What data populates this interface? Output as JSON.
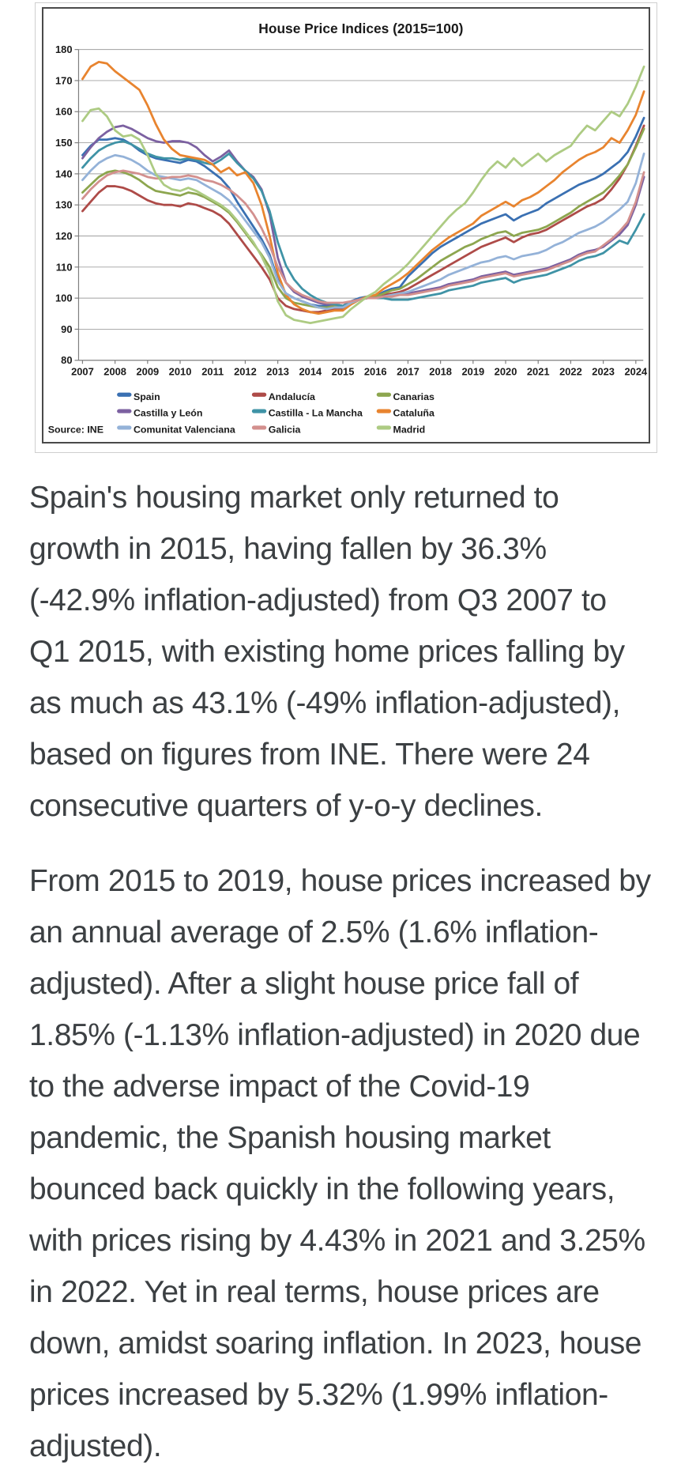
{
  "chart_data": {
    "type": "line",
    "title": "House Price Indices (2015=100)",
    "source": "Source: INE",
    "x_start": 2007.0,
    "x_step_years": 0.25,
    "x_tick_labels": [
      "2007",
      "2008",
      "2009",
      "2010",
      "2011",
      "2012",
      "2013",
      "2014",
      "2015",
      "2016",
      "2017",
      "2018",
      "2019",
      "2020",
      "2021",
      "2022",
      "2023",
      "2024"
    ],
    "ylim": [
      80,
      180
    ],
    "y_tick_step": 10,
    "grid": true,
    "legend_position": "bottom",
    "series": [
      {
        "name": "Spain",
        "color": "#3A70B2",
        "values": [
          146,
          149,
          151,
          151,
          151.5,
          151,
          149.5,
          147.5,
          146,
          145,
          144.5,
          144,
          143.5,
          144.5,
          144,
          142.5,
          140.5,
          138.5,
          135.5,
          131,
          127,
          123,
          119,
          114,
          106,
          101.5,
          100,
          99,
          98,
          97.5,
          97.5,
          98,
          97.5,
          99,
          100,
          100.5,
          100.5,
          102,
          103,
          103.5,
          107,
          109.5,
          112,
          114.5,
          116.5,
          118,
          119.5,
          121,
          122.5,
          124,
          125,
          126,
          127,
          125,
          126.5,
          127.5,
          128.5,
          130.5,
          132,
          133.5,
          135,
          136.5,
          137.5,
          138.5,
          140,
          142,
          144,
          147,
          152,
          158
        ]
      },
      {
        "name": "Andalucía",
        "color": "#AE4B48",
        "values": [
          128,
          131,
          134,
          136,
          136,
          135.5,
          134.5,
          133,
          131.5,
          130.5,
          130,
          130,
          129.5,
          130.5,
          130,
          129,
          128,
          126.5,
          124,
          120.5,
          117,
          113.5,
          110,
          106,
          100,
          97.5,
          96.5,
          96,
          95.5,
          95.5,
          96,
          96.5,
          96.5,
          98,
          99.5,
          100,
          100,
          101,
          101.5,
          102,
          103,
          104.5,
          106,
          107.5,
          109,
          110.5,
          112,
          113.5,
          115,
          116.5,
          117.5,
          118.5,
          119.5,
          118,
          119.5,
          120.5,
          121,
          122,
          123.5,
          125,
          126.5,
          128,
          129.5,
          130.5,
          132,
          135,
          138.5,
          143,
          149,
          155.5
        ]
      },
      {
        "name": "Canarias",
        "color": "#8DA64F",
        "values": [
          134,
          136.5,
          139,
          140.5,
          141,
          140.5,
          139.5,
          138,
          136,
          134.5,
          134,
          133.5,
          133,
          134,
          133.5,
          132.5,
          131,
          129.5,
          127.5,
          124.5,
          121,
          117.5,
          114,
          110,
          103.5,
          100,
          98.5,
          98,
          97.5,
          97,
          97,
          97.5,
          97.5,
          98.5,
          99.5,
          100.5,
          100.5,
          101.5,
          102.5,
          103,
          104.5,
          106,
          108,
          110,
          112,
          113.5,
          115,
          116.5,
          117.5,
          119,
          120,
          121,
          121.5,
          120,
          121,
          121.5,
          122,
          123,
          124.5,
          126,
          127.5,
          129.5,
          131,
          132.5,
          134,
          136.5,
          139.5,
          143,
          148.5,
          154.5
        ]
      },
      {
        "name": "Castilla y León",
        "color": "#7C61A1",
        "values": [
          145,
          148.5,
          151.5,
          153.5,
          155,
          155.5,
          154.5,
          153,
          151.5,
          150.5,
          150,
          150.5,
          150.5,
          150,
          148.5,
          146,
          144,
          145.5,
          147.5,
          144,
          141,
          139,
          135,
          127,
          113,
          105,
          102,
          100.5,
          99.5,
          98.5,
          98,
          98,
          97.5,
          98.5,
          99.5,
          100,
          100,
          100.5,
          101,
          101,
          101.5,
          102,
          102.5,
          103,
          103.5,
          104.5,
          105,
          105.5,
          106,
          107,
          107.5,
          108,
          108.5,
          107.5,
          108,
          108.5,
          109,
          109.5,
          110.5,
          111.5,
          112.5,
          114,
          115,
          115.5,
          116.5,
          118.5,
          120.5,
          123.5,
          130,
          139
        ]
      },
      {
        "name": "Castilla - La Mancha",
        "color": "#3F93A6",
        "values": [
          142,
          145,
          147.5,
          149,
          150,
          150.5,
          149.5,
          148,
          146.5,
          145.5,
          145,
          145,
          144.5,
          145,
          144.5,
          143.5,
          143,
          144.5,
          146.5,
          143.5,
          141,
          138.5,
          134.5,
          128,
          118,
          110.5,
          106,
          103,
          101,
          99.5,
          98.5,
          98,
          97.5,
          98.5,
          99.5,
          100,
          100,
          100,
          99.5,
          99.5,
          99.5,
          100,
          100.5,
          101,
          101.5,
          102.5,
          103,
          103.5,
          104,
          105,
          105.5,
          106,
          106.5,
          105,
          106,
          106.5,
          107,
          107.5,
          108.5,
          109.5,
          110.5,
          112,
          113,
          113.5,
          114.5,
          116.5,
          118.5,
          117.5,
          122,
          127
        ]
      },
      {
        "name": "Cataluña",
        "color": "#E8842F",
        "values": [
          170.5,
          174.5,
          176,
          175.5,
          173,
          171,
          169,
          167,
          162,
          156,
          151,
          148,
          146,
          145.5,
          145,
          144.5,
          143,
          140.5,
          142,
          139.5,
          140.5,
          137,
          130,
          120,
          108,
          101,
          98,
          96.5,
          95.5,
          95,
          95.5,
          96,
          96,
          98,
          99.5,
          100.5,
          101,
          103,
          104.5,
          106,
          108,
          110.5,
          113,
          115.5,
          117.5,
          119.5,
          121,
          122.5,
          124,
          126.5,
          128,
          129.5,
          131,
          129.5,
          131.5,
          132.5,
          134,
          136,
          138,
          140.5,
          142.5,
          144.5,
          146,
          147,
          148.5,
          151.5,
          150,
          154,
          159,
          166.5
        ]
      },
      {
        "name": "Comunitat Valenciana",
        "color": "#94B2D8",
        "values": [
          138,
          141,
          143.5,
          145,
          146,
          145.5,
          144.5,
          143,
          141,
          139.5,
          139,
          138.5,
          138,
          138.5,
          138,
          136.5,
          135,
          133.5,
          131.5,
          128.5,
          125,
          121.5,
          118,
          113,
          105.5,
          101.5,
          100,
          99,
          98,
          97,
          96.5,
          97,
          97,
          98.5,
          99.5,
          100,
          100,
          100.5,
          101,
          101.5,
          102,
          103,
          104,
          105,
          106,
          107.5,
          108.5,
          109.5,
          110.5,
          111.5,
          112,
          113,
          113.5,
          112.5,
          113.5,
          114,
          114.5,
          115.5,
          117,
          118,
          119.5,
          121,
          122,
          123,
          124.5,
          126.5,
          128.5,
          131,
          137,
          146.5
        ]
      },
      {
        "name": "Galicia",
        "color": "#D3908E",
        "values": [
          132,
          135,
          137.5,
          139.5,
          140.5,
          141,
          140.5,
          140,
          139,
          138.5,
          138.5,
          139,
          139,
          139.5,
          139,
          138,
          137.5,
          136.5,
          135,
          133,
          130.5,
          127,
          122.5,
          117,
          110,
          105,
          102.5,
          101,
          100,
          99,
          98.5,
          98.5,
          98.5,
          99,
          99.5,
          100,
          100,
          100.5,
          100.5,
          101,
          101,
          101.5,
          102,
          102.5,
          103,
          104,
          104.5,
          105,
          105.5,
          106.5,
          107,
          107.5,
          108,
          107,
          107.5,
          108,
          108.5,
          109,
          110,
          111,
          112,
          113.5,
          114.5,
          115,
          117,
          119,
          121.5,
          124.5,
          131,
          140.5
        ]
      },
      {
        "name": "Madrid",
        "color": "#ADCB83",
        "values": [
          157,
          160.5,
          161,
          158.5,
          154,
          152,
          152.5,
          151,
          146,
          140,
          136.5,
          135,
          134.5,
          135.5,
          134.5,
          133,
          131.5,
          130,
          128,
          125,
          121.5,
          118,
          113.5,
          108,
          99,
          94.5,
          93,
          92.5,
          92,
          92.5,
          93,
          93.5,
          94,
          96.5,
          98.5,
          100.5,
          102,
          104.5,
          106.5,
          108.5,
          111,
          114,
          117,
          120,
          123,
          126,
          128.5,
          130.5,
          134,
          138,
          141.5,
          144,
          142,
          145,
          142.5,
          144.5,
          146.5,
          144,
          146,
          147.5,
          149,
          152.5,
          155.5,
          154,
          157,
          160,
          158.5,
          162.5,
          168,
          174.5
        ]
      }
    ]
  },
  "article": {
    "paragraphs": [
      [
        "Spain's housing market only returned to",
        "growth in 2015, having fallen by 36.3%",
        "(-42.9% inflation-adjusted) from Q3 2007 to",
        "Q1 2015, with existing home prices falling by",
        "as much as 43.1% (-49% inflation-adjusted),",
        "based on figures from INE. There were 24",
        "consecutive quarters of y-o-y declines."
      ],
      [
        "From 2015 to 2019, house prices increased by",
        "an annual average of 2.5% (1.6% inflation-",
        "adjusted). After a slight house price fall of",
        "1.85% (-1.13% inflation-adjusted) in 2020 due",
        "to the adverse impact of the Covid-19",
        "pandemic, the Spanish housing market",
        "bounced back quickly in the following years,",
        "with prices rising by 4.43% in 2021 and 3.25%",
        "in 2022. Yet in real terms, house prices are",
        "down, amidst soaring inflation. In 2023, house",
        "prices increased by 5.32% (1.99% inflation-",
        "adjusted)."
      ]
    ]
  },
  "colors": {
    "text": "#3c4043",
    "chart_text": "#1a1a1a",
    "grid": "#a0a0a0",
    "axis": "#7f7f7f",
    "frame_outer": "#cfcfcf",
    "frame_inner": "#4a4a4a"
  }
}
